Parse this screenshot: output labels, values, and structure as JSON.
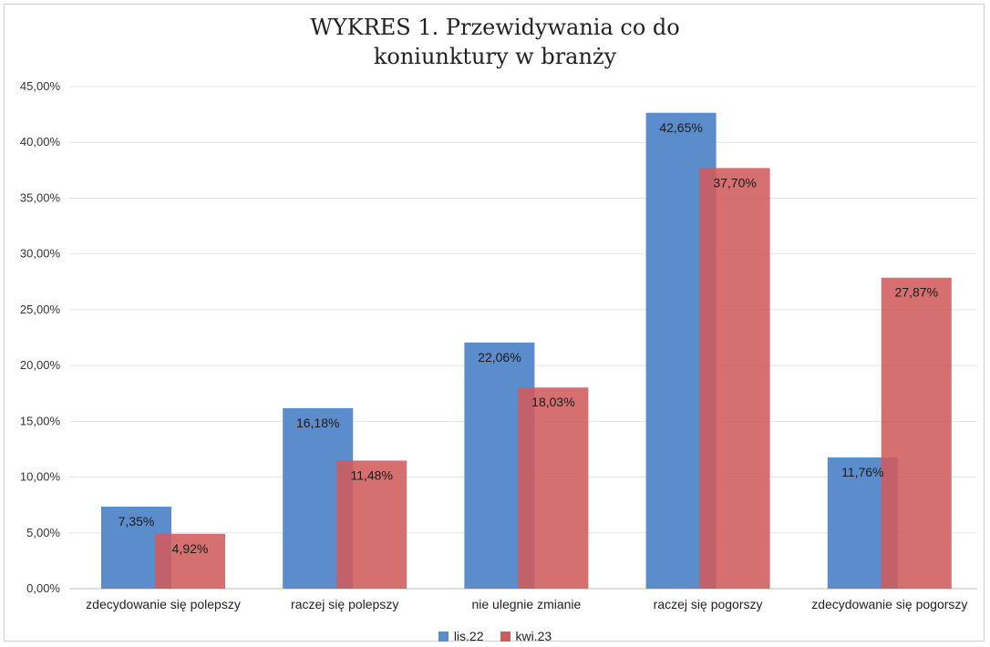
{
  "chart_data": {
    "type": "bar",
    "title_lines": [
      "WYKRES 1. Przewidywania co do",
      "koniunktury w branży"
    ],
    "categories": [
      "zdecydowanie się polepszy",
      "raczej się polepszy",
      "nie ulegnie zmianie",
      "raczej się pogorszy",
      "zdecydowanie się pogorszy"
    ],
    "series": [
      {
        "name": "lis.22",
        "values": [
          7.35,
          16.18,
          22.06,
          42.65,
          11.76
        ],
        "labels": [
          "7,35%",
          "16,18%",
          "22,06%",
          "42,65%",
          "11,76%"
        ],
        "color": "#5b8ccb"
      },
      {
        "name": "kwi.23",
        "values": [
          4.92,
          11.48,
          18.03,
          37.7,
          27.87
        ],
        "labels": [
          "4,92%",
          "11,48%",
          "18,03%",
          "37,70%",
          "27,87%"
        ],
        "color": "#d05b5b"
      }
    ],
    "yticks": [
      "0,00%",
      "5,00%",
      "10,00%",
      "15,00%",
      "20,00%",
      "25,00%",
      "30,00%",
      "35,00%",
      "40,00%",
      "45,00%"
    ],
    "ylim": [
      0,
      45
    ],
    "grid": true,
    "legend_position": "bottom"
  }
}
